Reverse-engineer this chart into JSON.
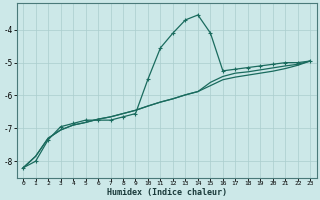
{
  "xlabel": "Humidex (Indice chaleur)",
  "bg_color": "#cce8e8",
  "line_color": "#1a6b5e",
  "grid_color": "#aacece",
  "xlim": [
    -0.5,
    23.5
  ],
  "ylim": [
    -8.5,
    -3.2
  ],
  "xticks": [
    0,
    1,
    2,
    3,
    4,
    5,
    6,
    7,
    8,
    9,
    10,
    11,
    12,
    13,
    14,
    15,
    16,
    17,
    18,
    19,
    20,
    21,
    22,
    23
  ],
  "yticks": [
    -8,
    -7,
    -6,
    -5,
    -4
  ],
  "line1_x": [
    0,
    1,
    2,
    3,
    4,
    5,
    6,
    7,
    8,
    9,
    10,
    11,
    12,
    13,
    14,
    15,
    16,
    17,
    18,
    19,
    20,
    21,
    22,
    23
  ],
  "line1_y": [
    -8.2,
    -8.0,
    -7.35,
    -6.95,
    -6.85,
    -6.75,
    -6.75,
    -6.75,
    -6.65,
    -6.55,
    -5.5,
    -4.55,
    -4.1,
    -3.7,
    -3.55,
    -4.1,
    -5.25,
    -5.2,
    -5.15,
    -5.1,
    -5.05,
    -5.0,
    -5.0,
    -4.95
  ],
  "line2_x": [
    0,
    1,
    2,
    3,
    4,
    5,
    6,
    7,
    8,
    9,
    10,
    11,
    12,
    13,
    14,
    15,
    16,
    17,
    18,
    19,
    20,
    21,
    22,
    23
  ],
  "line2_y": [
    -8.2,
    -7.85,
    -7.3,
    -7.05,
    -6.9,
    -6.82,
    -6.72,
    -6.65,
    -6.55,
    -6.45,
    -6.32,
    -6.2,
    -6.1,
    -5.98,
    -5.88,
    -5.6,
    -5.42,
    -5.32,
    -5.28,
    -5.22,
    -5.16,
    -5.1,
    -5.05,
    -4.95
  ],
  "line3_x": [
    0,
    1,
    2,
    3,
    4,
    5,
    6,
    7,
    8,
    9,
    10,
    11,
    12,
    13,
    14,
    15,
    16,
    17,
    18,
    19,
    20,
    21,
    22,
    23
  ],
  "line3_y": [
    -8.2,
    -7.85,
    -7.3,
    -7.05,
    -6.9,
    -6.82,
    -6.72,
    -6.65,
    -6.55,
    -6.45,
    -6.32,
    -6.2,
    -6.1,
    -5.98,
    -5.88,
    -5.7,
    -5.52,
    -5.44,
    -5.38,
    -5.32,
    -5.26,
    -5.18,
    -5.08,
    -4.95
  ],
  "marker_size": 2.5,
  "lw": 0.9
}
